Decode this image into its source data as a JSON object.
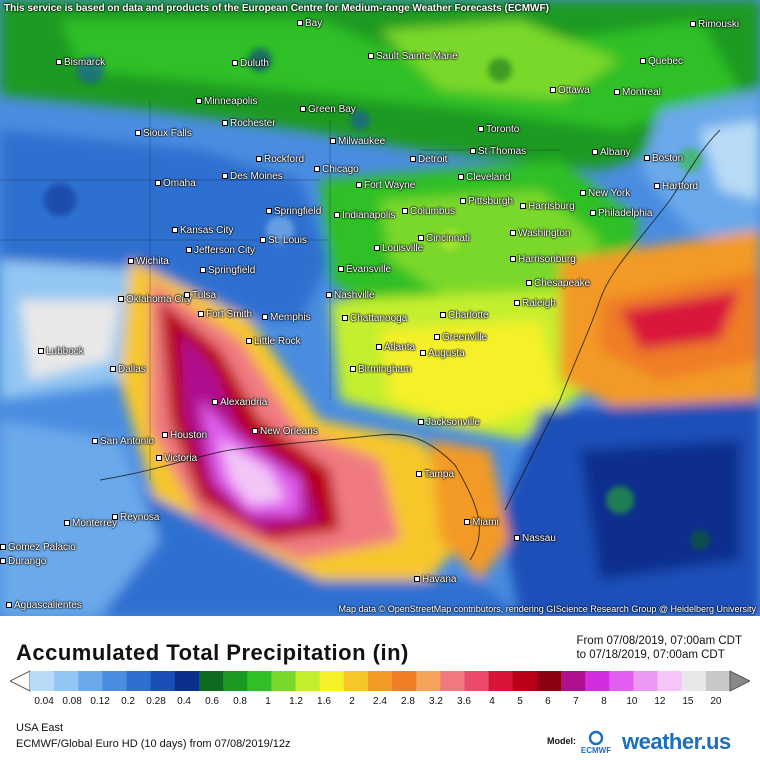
{
  "banner": "This service is based on data and products of the European Centre for Medium-range Weather Forecasts (ECMWF)",
  "attribution": "Map data © OpenStreetMap contributors, rendering GIScience Research Group @ Heidelberg University",
  "cities": [
    {
      "name": "Bay"
    },
    {
      "name": "Rimouski"
    },
    {
      "name": "Bismarck"
    },
    {
      "name": "Duluth"
    },
    {
      "name": "Sault Sainte Marie"
    },
    {
      "name": "Quebec"
    },
    {
      "name": "Minneapolis"
    },
    {
      "name": "Green Bay"
    },
    {
      "name": "Ottawa"
    },
    {
      "name": "Montreal"
    },
    {
      "name": "Sioux Falls"
    },
    {
      "name": "Rochester"
    },
    {
      "name": "Milwaukee"
    },
    {
      "name": "Toronto"
    },
    {
      "name": "Albany"
    },
    {
      "name": "Boston"
    },
    {
      "name": "Rockford"
    },
    {
      "name": "St Thomas"
    },
    {
      "name": "Detroit"
    },
    {
      "name": "Omaha"
    },
    {
      "name": "Des Moines"
    },
    {
      "name": "Chicago"
    },
    {
      "name": "Cleveland"
    },
    {
      "name": "New York"
    },
    {
      "name": "Hartford"
    },
    {
      "name": "Fort Wayne"
    },
    {
      "name": "Pittsburgh"
    },
    {
      "name": "Harrisburg"
    },
    {
      "name": "Springfield"
    },
    {
      "name": "Indianapolis"
    },
    {
      "name": "Columbus"
    },
    {
      "name": "Philadelphia"
    },
    {
      "name": "Kansas City"
    },
    {
      "name": "Jefferson City"
    },
    {
      "name": "St. Louis"
    },
    {
      "name": "Cincinnati"
    },
    {
      "name": "Washington"
    },
    {
      "name": "Louisville"
    },
    {
      "name": "Wichita"
    },
    {
      "name": "Springfield"
    },
    {
      "name": "Evansville"
    },
    {
      "name": "Harrisonburg"
    },
    {
      "name": "Chesapeake"
    },
    {
      "name": "Oklahoma City"
    },
    {
      "name": "Tulsa"
    },
    {
      "name": "Nashville"
    },
    {
      "name": "Raleigh"
    },
    {
      "name": "Fort Smith"
    },
    {
      "name": "Memphis"
    },
    {
      "name": "Chattanooga"
    },
    {
      "name": "Charlotte"
    },
    {
      "name": "Greenville"
    },
    {
      "name": "Lubbock"
    },
    {
      "name": "Little Rock"
    },
    {
      "name": "Atlanta"
    },
    {
      "name": "Augusta"
    },
    {
      "name": "Dallas"
    },
    {
      "name": "Birmingham"
    },
    {
      "name": "Alexandria"
    },
    {
      "name": "Jacksonville"
    },
    {
      "name": "San Antonio"
    },
    {
      "name": "Houston"
    },
    {
      "name": "New Orleans"
    },
    {
      "name": "Victoria"
    },
    {
      "name": "Tampa"
    },
    {
      "name": "Monterrey"
    },
    {
      "name": "Reynosa"
    },
    {
      "name": "Miami"
    },
    {
      "name": "Nassau"
    },
    {
      "name": "Gomez Palacio"
    },
    {
      "name": "Durango"
    },
    {
      "name": "Havana"
    },
    {
      "name": "Aguascalientes"
    }
  ],
  "legend": {
    "title": "Accumulated Total Precipitation (in)",
    "from": "From 07/08/2019, 07:00am CDT",
    "to": "to 07/18/2019, 07:00am CDT",
    "colors": [
      "#b8dcf7",
      "#93c6f2",
      "#6aa9ea",
      "#4a8de0",
      "#2f6fd0",
      "#1a4fb8",
      "#0b2f8e",
      "#0e6a1e",
      "#1a9a20",
      "#2fc026",
      "#7ad82a",
      "#c4ef2e",
      "#f5f02a",
      "#f7c72a",
      "#f39a25",
      "#ef7d25",
      "#f5a25b",
      "#f07a80",
      "#ea4b6a",
      "#d9143a",
      "#b80018",
      "#8d0012",
      "#b01090",
      "#d22ee0",
      "#e05ff0",
      "#eb99f2",
      "#f3c6f7",
      "#e8e8e8",
      "#c8c8c8"
    ],
    "ticks": [
      "0.04",
      "0.08",
      "0.12",
      "0.2",
      "0.28",
      "0.4",
      "0.6",
      "0.8",
      "1",
      "1.2",
      "1.6",
      "2",
      "2.4",
      "2.8",
      "3.2",
      "3.6",
      "4",
      "5",
      "6",
      "7",
      "8",
      "10",
      "12",
      "15",
      "20"
    ]
  },
  "footer": {
    "region": "USA East",
    "model": "ECMWF/Global Euro HD (10 days) from 07/08/2019/12z",
    "model_label": "Model:",
    "ecmwf_text": "ECMWF",
    "brand": "weather.us"
  }
}
